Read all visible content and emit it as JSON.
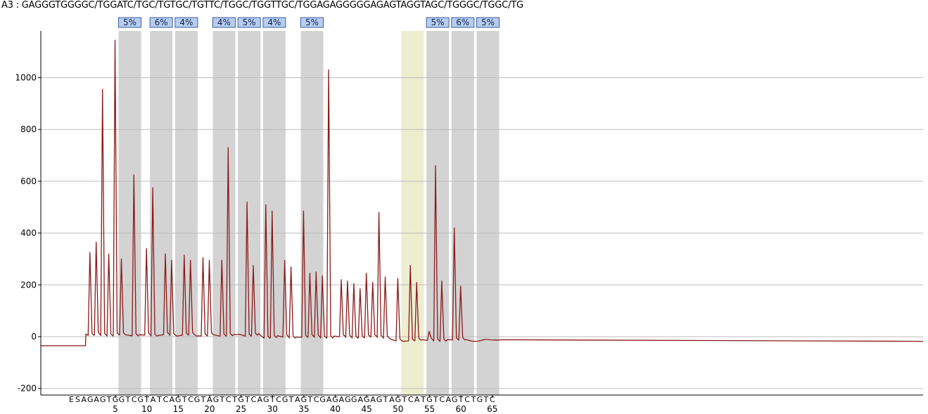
{
  "title": "A3 : GAGGGTGGGGC/TGGATC/TGC/TGTGC/TGTTC/TGGC/TGGTTGC/TGGAGAGGGGGAGAGTAGGTAGC/TGGGC/TGGC/TG",
  "chart_data": {
    "type": "line",
    "title": "A3 : GAGGGTGGGGC/TGGATC/TGC/TGTGC/TGTTC/TGGC/TGGTTGC/TGGAGAGGGGGAGAGTAGGTAGC/TGGGC/TGGC/TG",
    "xlabel": "",
    "ylabel": "",
    "ylim": [
      -200,
      1150
    ],
    "y_ticks": [
      -200,
      0,
      200,
      400,
      600,
      800,
      1000
    ],
    "x_ticks": [
      5,
      10,
      15,
      20,
      25,
      30,
      35,
      40,
      45,
      50,
      55,
      60,
      65
    ],
    "grid": "horizontal",
    "dispensation": [
      "E",
      "S",
      "A",
      "G",
      "A",
      "G",
      "T",
      "G",
      "G",
      "T",
      "C",
      "G",
      "T",
      "A",
      "T",
      "C",
      "A",
      "G",
      "T",
      "C",
      "G",
      "T",
      "A",
      "G",
      "T",
      "C",
      "T",
      "G",
      "T",
      "C",
      "A",
      "G",
      "T",
      "C",
      "G",
      "T",
      "A",
      "G",
      "T",
      "C",
      "G",
      "A",
      "G",
      "A",
      "G",
      "G",
      "A",
      "G",
      "A",
      "G",
      "T",
      "A",
      "G",
      "T",
      "C",
      "A",
      "T",
      "G",
      "T",
      "C",
      "A",
      "G",
      "T",
      "C",
      "T",
      "G",
      "T",
      "C"
    ],
    "peaks": [
      {
        "x": 1,
        "y": 325
      },
      {
        "x": 2,
        "y": 365
      },
      {
        "x": 3,
        "y": 955
      },
      {
        "x": 4,
        "y": 320
      },
      {
        "x": 5,
        "y": 1145
      },
      {
        "x": 6,
        "y": 300
      },
      {
        "x": 8,
        "y": 625
      },
      {
        "x": 10,
        "y": 340
      },
      {
        "x": 11,
        "y": 575
      },
      {
        "x": 13,
        "y": 320
      },
      {
        "x": 14,
        "y": 295
      },
      {
        "x": 16,
        "y": 315
      },
      {
        "x": 17,
        "y": 295
      },
      {
        "x": 19,
        "y": 305
      },
      {
        "x": 20,
        "y": 295
      },
      {
        "x": 22,
        "y": 295
      },
      {
        "x": 23,
        "y": 730
      },
      {
        "x": 26,
        "y": 520
      },
      {
        "x": 27,
        "y": 275
      },
      {
        "x": 29,
        "y": 510
      },
      {
        "x": 30,
        "y": 485
      },
      {
        "x": 32,
        "y": 295
      },
      {
        "x": 33,
        "y": 270
      },
      {
        "x": 35,
        "y": 485
      },
      {
        "x": 36,
        "y": 245
      },
      {
        "x": 37,
        "y": 250
      },
      {
        "x": 38,
        "y": 235
      },
      {
        "x": 39,
        "y": 1030
      },
      {
        "x": 41,
        "y": 220
      },
      {
        "x": 42,
        "y": 215
      },
      {
        "x": 43,
        "y": 205
      },
      {
        "x": 44,
        "y": 185
      },
      {
        "x": 45,
        "y": 245
      },
      {
        "x": 46,
        "y": 210
      },
      {
        "x": 47,
        "y": 480
      },
      {
        "x": 48,
        "y": 230
      },
      {
        "x": 50,
        "y": 225
      },
      {
        "x": 52,
        "y": 275
      },
      {
        "x": 53,
        "y": 210
      },
      {
        "x": 55,
        "y": 20
      },
      {
        "x": 56,
        "y": 660
      },
      {
        "x": 57,
        "y": 215
      },
      {
        "x": 59,
        "y": 420
      },
      {
        "x": 60,
        "y": 195
      }
    ],
    "highlights": [
      {
        "x": 7,
        "label": "5%",
        "color": "#d3d3d3"
      },
      {
        "x": 12,
        "label": "6%",
        "color": "#d3d3d3"
      },
      {
        "x": 16,
        "label": "4%",
        "color": "#d3d3d3"
      },
      {
        "x": 22,
        "label": "4%",
        "color": "#d3d3d3"
      },
      {
        "x": 26,
        "label": "5%",
        "color": "#d3d3d3"
      },
      {
        "x": 30,
        "label": "4%",
        "color": "#d3d3d3"
      },
      {
        "x": 36,
        "label": "5%",
        "color": "#d3d3d3"
      },
      {
        "x": 52,
        "label": "",
        "color": "#ededd0"
      },
      {
        "x": 56,
        "label": "5%",
        "color": "#d3d3d3"
      },
      {
        "x": 60,
        "label": "6%",
        "color": "#d3d3d3"
      },
      {
        "x": 64,
        "label": "5%",
        "color": "#d3d3d3"
      }
    ],
    "colors": {
      "trace": "#8b1a1a",
      "label_box": "#b7cdf0",
      "label_border": "#3a5fa0",
      "grid": "#bdbdbd"
    }
  }
}
